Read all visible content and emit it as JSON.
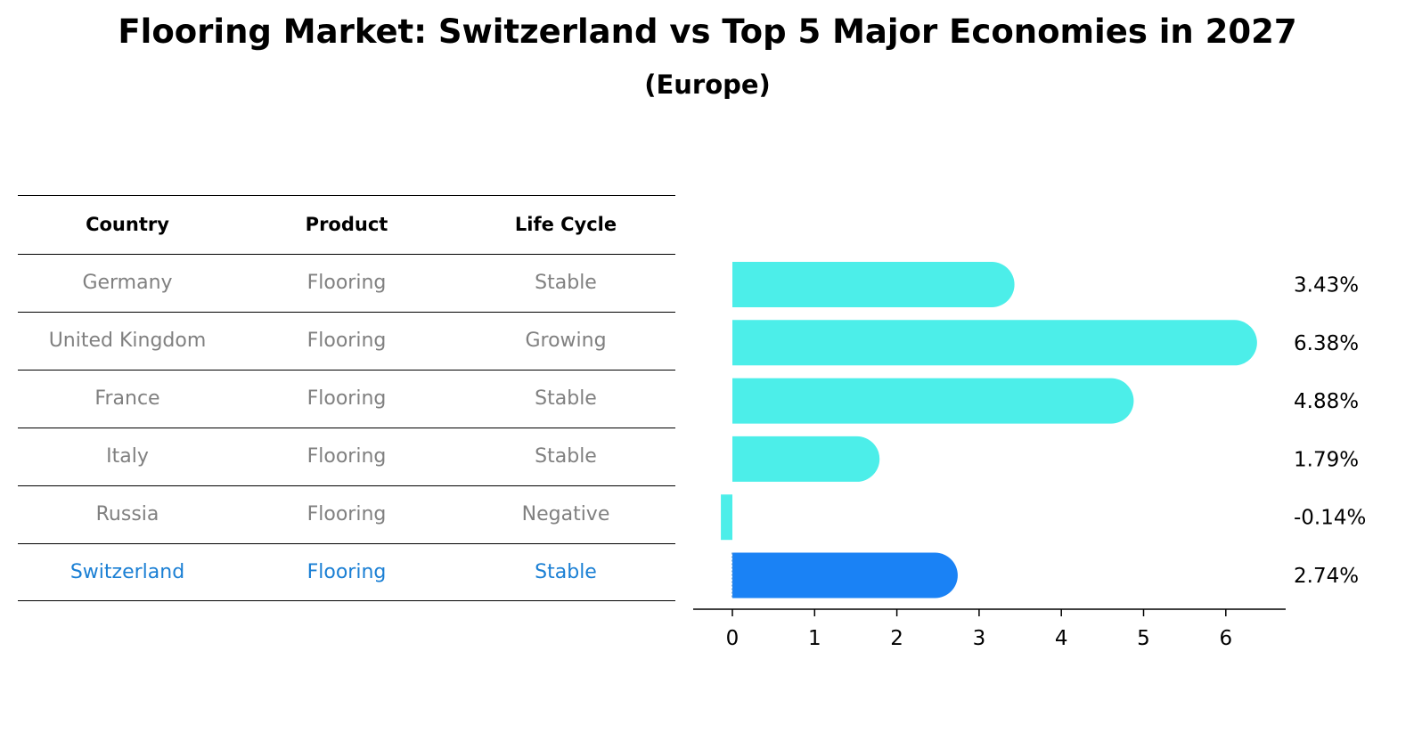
{
  "title": "Flooring Market: Switzerland vs Top 5 Major Economies in 2027",
  "subtitle": "(Europe)",
  "table": {
    "headers": [
      "Country",
      "Product",
      "Life Cycle"
    ],
    "rows": [
      {
        "country": "Germany",
        "product": "Flooring",
        "life_cycle": "Stable"
      },
      {
        "country": "United Kingdom",
        "product": "Flooring",
        "life_cycle": "Growing"
      },
      {
        "country": "France",
        "product": "Flooring",
        "life_cycle": "Stable"
      },
      {
        "country": "Italy",
        "product": "Flooring",
        "life_cycle": "Stable"
      },
      {
        "country": "Russia",
        "product": "Flooring",
        "life_cycle": "Negative"
      },
      {
        "country": "Switzerland",
        "product": "Flooring",
        "life_cycle": "Stable"
      }
    ]
  },
  "colors": {
    "bar": "#4ceee9",
    "highlight_bar": "#1a82f5",
    "highlight_text": "#1a7fd4",
    "body_text": "#808080"
  },
  "chart_data": {
    "type": "bar",
    "orientation": "horizontal",
    "categories": [
      "Germany",
      "United Kingdom",
      "France",
      "Italy",
      "Russia",
      "Switzerland"
    ],
    "values": [
      3.43,
      6.38,
      4.88,
      1.79,
      -0.14,
      2.74
    ],
    "value_labels": [
      "3.43%",
      "6.38%",
      "4.88%",
      "1.79%",
      "-0.14%",
      "2.74%"
    ],
    "highlight_category": "Switzerland",
    "xlim": [
      -0.5,
      6.7
    ],
    "xticks": [
      0,
      1,
      2,
      3,
      4,
      5,
      6
    ],
    "xtick_labels": [
      "0",
      "1",
      "2",
      "3",
      "4",
      "5",
      "6"
    ],
    "xlabel": "",
    "ylabel": "",
    "grid": false
  }
}
